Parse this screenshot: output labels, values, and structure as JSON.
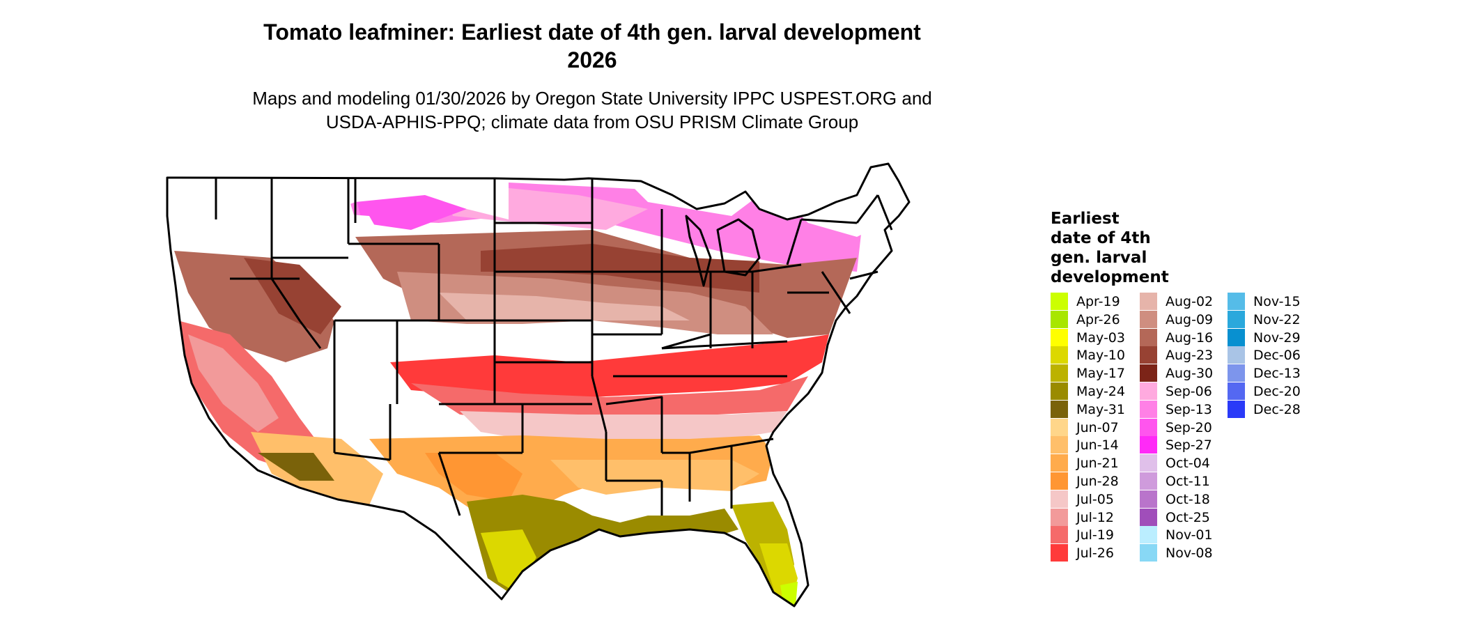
{
  "title_line1": "Tomato leafminer: Earliest date of 4th gen. larval development",
  "title_line2": "2026",
  "subtitle_line1": "Maps and modeling 01/30/2026 by Oregon State University IPPC USPEST.ORG and",
  "subtitle_line2": "USDA-APHIS-PPQ; climate data from OSU PRISM Climate Group",
  "legend": {
    "title_lines": [
      "Earliest",
      "date of 4th",
      "gen. larval",
      "development"
    ],
    "columns": [
      [
        {
          "label": "Apr-19",
          "color": "#ccff00"
        },
        {
          "label": "Apr-26",
          "color": "#a8e600"
        },
        {
          "label": "May-03",
          "color": "#ffff00"
        },
        {
          "label": "May-10",
          "color": "#dcd800"
        },
        {
          "label": "May-17",
          "color": "#bcb200"
        },
        {
          "label": "May-24",
          "color": "#9a8b00"
        },
        {
          "label": "May-31",
          "color": "#7a620a"
        },
        {
          "label": "Jun-07",
          "color": "#ffd68a"
        },
        {
          "label": "Jun-14",
          "color": "#ffbf6a"
        },
        {
          "label": "Jun-21",
          "color": "#ffab4c"
        },
        {
          "label": "Jun-28",
          "color": "#ff9633"
        },
        {
          "label": "Jul-05",
          "color": "#f5c7c7"
        },
        {
          "label": "Jul-12",
          "color": "#f29a9a"
        },
        {
          "label": "Jul-19",
          "color": "#f56a6a"
        },
        {
          "label": "Jul-26",
          "color": "#ff3a3a"
        }
      ],
      [
        {
          "label": "Aug-02",
          "color": "#e6b4aa"
        },
        {
          "label": "Aug-09",
          "color": "#cf8e80"
        },
        {
          "label": "Aug-16",
          "color": "#b46858"
        },
        {
          "label": "Aug-23",
          "color": "#974233"
        },
        {
          "label": "Aug-30",
          "color": "#7c2418"
        },
        {
          "label": "Sep-06",
          "color": "#ffaadf"
        },
        {
          "label": "Sep-13",
          "color": "#ff80e6"
        },
        {
          "label": "Sep-20",
          "color": "#ff55ee"
        },
        {
          "label": "Sep-27",
          "color": "#ff2af7"
        },
        {
          "label": "Oct-04",
          "color": "#e0c0ea"
        },
        {
          "label": "Oct-11",
          "color": "#cf9bdc"
        },
        {
          "label": "Oct-18",
          "color": "#b974cb"
        },
        {
          "label": "Oct-25",
          "color": "#a04eba"
        },
        {
          "label": "Nov-01",
          "color": "#bbeeff"
        },
        {
          "label": "Nov-08",
          "color": "#88d8f5"
        }
      ],
      [
        {
          "label": "Nov-15",
          "color": "#55bce8"
        },
        {
          "label": "Nov-22",
          "color": "#2aa8dc"
        },
        {
          "label": "Nov-29",
          "color": "#0890d0"
        },
        {
          "label": "Dec-06",
          "color": "#a9c4e6"
        },
        {
          "label": "Dec-13",
          "color": "#7d95ec"
        },
        {
          "label": "Dec-20",
          "color": "#5468f2"
        },
        {
          "label": "Dec-28",
          "color": "#2a3af8"
        }
      ]
    ]
  }
}
